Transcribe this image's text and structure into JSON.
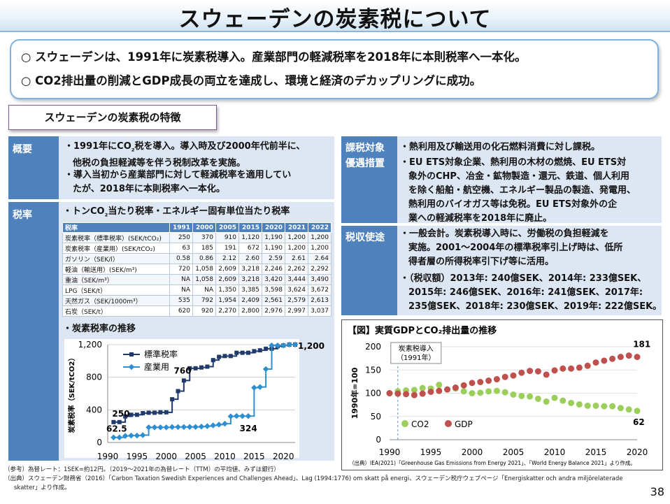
{
  "title": "スウェーデンの炭素税について",
  "summary": [
    "○ スウェーデンは、1991年に炭素税導入。産業部門の軽減税率を2018年に本則税率へ一本化。",
    "○ CO2排出量の削減とGDP成長の両立を達成し、環境と経済のデカップリングに成功。"
  ],
  "section_title": "スウェーデンの炭素税の特徴",
  "overview": {
    "label": "概要",
    "bullets": [
      [
        "・1991年にCO",
        "₂",
        "税を導入。導入時及び2000年代前半に、",
        "他税の負担軽減等を伴う税制改革を実施。"
      ],
      [
        "・導入当初から産業部門に対して軽減税率を適用してい",
        "たが、2018年に本則税率へ一本化。"
      ]
    ]
  },
  "rate": {
    "label": "税率",
    "heading": [
      "・トンCO",
      "₂",
      "当たり税率・エネルギー固有単位当たり税率"
    ],
    "table": {
      "headers": [
        "税率",
        "1991",
        "2000",
        "2005",
        "2015",
        "2020",
        "2021",
        "2022"
      ],
      "rows": [
        [
          "炭素税率（標準税率）(SEK/tCO₂)",
          "250",
          "370",
          "910",
          "1,120",
          "1,190",
          "1,200",
          "1,200"
        ],
        [
          "炭素税率（産業用）(SEK/tCO₂)",
          "63",
          "185",
          "191",
          "672",
          "1,190",
          "1,200",
          "1,200"
        ],
        [
          "ガソリン（SEK/l）",
          "0.58",
          "0.86",
          "2.12",
          "2.60",
          "2.59",
          "2.61",
          "2.64"
        ],
        [
          "軽油（輸送用）(SEK/m³)",
          "720",
          "1,058",
          "2,609",
          "3,218",
          "2,246",
          "2,262",
          "2,292"
        ],
        [
          "重油（SEK/m³）",
          "NA",
          "1,058",
          "2,609",
          "3,218",
          "3,420",
          "3,444",
          "3,490"
        ],
        [
          "LPG（SEK/t）",
          "NA",
          "NA",
          "1,350",
          "3,385",
          "3,598",
          "3,624",
          "3,672"
        ],
        [
          "天然ガス（SEK/1000m³）",
          "535",
          "792",
          "1,954",
          "2,409",
          "2,561",
          "2,579",
          "2,613"
        ],
        [
          "石炭（SEK/t）",
          "620",
          "920",
          "2,270",
          "2,800",
          "2,976",
          "2,997",
          "3,037"
        ]
      ]
    },
    "trend_heading": "・炭素税率の推移"
  },
  "target": {
    "label1": "課税対象",
    "label2": "優遇措置",
    "bullets": [
      [
        "・熱利用及び輸送用の化石燃料消費に対し課税。"
      ],
      [
        "・EU ETS対象企業、熱利用の木材の燃焼、EU ETS対",
        "象外のCHP、冶金・鉱物製造・還元、鉄道、個人利用",
        "を除く船舶・航空機、エネルギー製品の製造、発電用、",
        "熱利用のバイオガス等は免税。EU ETS対象外の企",
        "業への軽減税率を2018年に廃止。"
      ]
    ]
  },
  "usage": {
    "label": "税収使途",
    "bullets": [
      [
        "・一般会計。炭素税導入時に、労働税の負担軽減を",
        "実施。2001～2004年の標準税率引上げ時は、低所",
        "得者層の所得税率引下げ等に活用。"
      ],
      [
        "・（税収額）2013年: 240億SEK、2014年: 233億SEK、",
        "2015年: 246億SEK、2016年: 241億SEK、2017年:",
        "235億SEK、2018年: 230億SEK、2019年: 222億SEK。"
      ]
    ]
  },
  "chart_data": [
    {
      "type": "line",
      "title": "",
      "ylabel": "炭素税率（SEK/tCO2）",
      "xlabel": "",
      "xlim": [
        1990,
        2022
      ],
      "ylim": [
        0,
        1200
      ],
      "xticks": [
        "1990",
        "1995",
        "2000",
        "2005",
        "2010",
        "2015",
        "2020"
      ],
      "yticks": [
        "0",
        "400",
        "800",
        "1,200"
      ],
      "legend_position": "top-left",
      "series": [
        {
          "name": "標準税率",
          "color": "#1f3a6b",
          "marker": "square",
          "x": [
            1991,
            1992,
            1993,
            1994,
            1995,
            1996,
            1997,
            1998,
            1999,
            2000,
            2001,
            2002,
            2003,
            2004,
            2005,
            2006,
            2007,
            2008,
            2009,
            2010,
            2011,
            2012,
            2013,
            2014,
            2015,
            2016,
            2017,
            2018,
            2019,
            2020,
            2021,
            2022
          ],
          "values": [
            250,
            250,
            320,
            340,
            340,
            360,
            365,
            365,
            370,
            370,
            530,
            630,
            760,
            910,
            910,
            920,
            930,
            1010,
            1050,
            1060,
            1060,
            1100,
            1100,
            1100,
            1120,
            1130,
            1150,
            1150,
            1180,
            1190,
            1200,
            1200
          ]
        },
        {
          "name": "産業用",
          "color": "#2e8fd0",
          "marker": "diamond",
          "x": [
            1991,
            1992,
            1993,
            1994,
            1995,
            1996,
            1997,
            1998,
            1999,
            2000,
            2001,
            2002,
            2003,
            2004,
            2005,
            2006,
            2007,
            2008,
            2009,
            2010,
            2011,
            2012,
            2013,
            2014,
            2015,
            2016,
            2017,
            2018,
            2019,
            2020,
            2021,
            2022
          ],
          "values": [
            62.5,
            62.5,
            80,
            85,
            85,
            90,
            185,
            185,
            185,
            185,
            190,
            190,
            190,
            191,
            191,
            195,
            200,
            210,
            220,
            230,
            320,
            325,
            324,
            324,
            672,
            680,
            900,
            1190,
            1190,
            1190,
            1200,
            1200
          ]
        }
      ],
      "annotations": [
        "250",
        "62.5",
        "760",
        "324",
        "1,200"
      ]
    },
    {
      "type": "line",
      "title": "【図】実質GDPとCO₂排出量の推移",
      "ylabel": "1990年=100",
      "xlabel": "",
      "xlim": [
        1990,
        2020
      ],
      "ylim": [
        0,
        200
      ],
      "xticks": [
        "1990",
        "1995",
        "2000",
        "2005",
        "2010",
        "2015",
        "2020"
      ],
      "yticks": [
        "0",
        "50",
        "100",
        "150",
        "200"
      ],
      "legend_position": "bottom-left",
      "annotation": [
        "炭素税導入",
        "（1991年）"
      ],
      "series": [
        {
          "name": "CO2",
          "color": "#9bcf5a",
          "x": [
            1990,
            1991,
            1992,
            1993,
            1994,
            1995,
            1996,
            1997,
            1998,
            1999,
            2000,
            2001,
            2002,
            2003,
            2004,
            2005,
            2006,
            2007,
            2008,
            2009,
            2010,
            2011,
            2012,
            2013,
            2014,
            2015,
            2016,
            2017,
            2018,
            2019,
            2020
          ],
          "values": [
            100,
            104,
            106,
            107,
            111,
            110,
            118,
            108,
            110,
            104,
            100,
            101,
            104,
            105,
            102,
            97,
            94,
            93,
            88,
            82,
            90,
            84,
            79,
            76,
            73,
            73,
            72,
            72,
            68,
            65,
            62
          ]
        },
        {
          "name": "GDP",
          "color": "#c0504d",
          "x": [
            1990,
            1991,
            1992,
            1993,
            1994,
            1995,
            1996,
            1997,
            1998,
            1999,
            2000,
            2001,
            2002,
            2003,
            2004,
            2005,
            2006,
            2007,
            2008,
            2009,
            2010,
            2011,
            2012,
            2013,
            2014,
            2015,
            2016,
            2017,
            2018,
            2019,
            2020
          ],
          "values": [
            100,
            99,
            98,
            96,
            99,
            103,
            105,
            108,
            112,
            117,
            122,
            124,
            127,
            130,
            135,
            138,
            144,
            148,
            147,
            140,
            149,
            153,
            153,
            155,
            159,
            166,
            170,
            174,
            178,
            181,
            178
          ]
        }
      ],
      "annotations": [
        "181",
        "62"
      ]
    }
  ],
  "gdp_source": "（出典）IEA(2021)「Greenhouse Gas Emissions from Energy 2021」、「World Energy Balance 2021」より作成。",
  "footnotes": [
    "（参考）為替レート：1SEK=約12円。（2019～2021年の為替レート（TTM）の平均値、みずほ銀行）",
    "（出典）スウェーデン財務省（2016）「Carbon Taxation Swedish Experiences and Challenges Ahead」、Lag (1994:1776) om skatt på energi、スウェーデン税庁ウェブページ「Energiskatter och andra miljörelaterade",
    "skatter」より作成。"
  ],
  "page_number": "38"
}
